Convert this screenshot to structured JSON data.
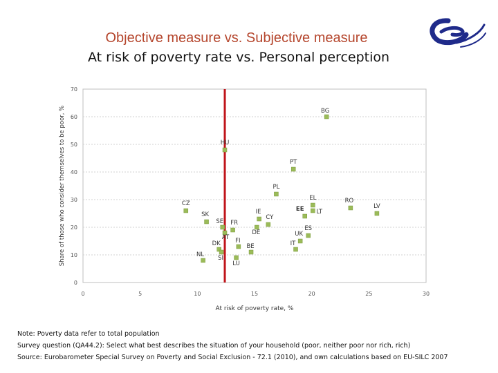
{
  "header": {
    "title": "Objective measure vs. Subjective measure",
    "subtitle": "At risk of poverty rate vs. Personal perception"
  },
  "logo": {
    "icon": "eu-commission-logo-icon",
    "color": "#1f2a8a"
  },
  "notes": [
    "Note: Poverty data refer to total population",
    "Survey question (QA44.2): Select what best describes the situation of your household (poor, neither poor nor rich, rich)",
    "Source: Eurobarometer Special Survey on Poverty and Social Exclusion - 72.1 (2010),  and own calculations based on EU-SILC 2007"
  ],
  "chart_data": {
    "type": "scatter",
    "xlabel": "At risk of poverty rate, %",
    "ylabel": "Share of those who consider themselves to be poor, %",
    "xlim": [
      0,
      30
    ],
    "ylim": [
      0,
      70
    ],
    "xticks": [
      0,
      5,
      10,
      15,
      20,
      25,
      30
    ],
    "yticks": [
      0,
      10,
      20,
      30,
      40,
      50,
      60,
      70
    ],
    "grid": "horizontal dotted",
    "reference_line": {
      "axis": "x",
      "value": 12.4,
      "color": "#c0141a"
    },
    "marker_color": "#9bbb59",
    "points": [
      {
        "label": "BG",
        "x": 21.3,
        "y": 60
      },
      {
        "label": "HU",
        "x": 12.4,
        "y": 48
      },
      {
        "label": "PT",
        "x": 18.4,
        "y": 41
      },
      {
        "label": "PL",
        "x": 16.9,
        "y": 32
      },
      {
        "label": "EL",
        "x": 20.1,
        "y": 28
      },
      {
        "label": "RO",
        "x": 23.4,
        "y": 27
      },
      {
        "label": "LV",
        "x": 25.7,
        "y": 25
      },
      {
        "label": "EE",
        "x": 19.4,
        "y": 24
      },
      {
        "label": "LT",
        "x": 20.1,
        "y": 26
      },
      {
        "label": "CZ",
        "x": 9.0,
        "y": 26
      },
      {
        "label": "SK",
        "x": 10.8,
        "y": 22
      },
      {
        "label": "SE",
        "x": 12.2,
        "y": 20
      },
      {
        "label": "FR",
        "x": 13.1,
        "y": 19
      },
      {
        "label": "IE",
        "x": 15.4,
        "y": 23
      },
      {
        "label": "CY",
        "x": 16.2,
        "y": 21
      },
      {
        "label": "DE",
        "x": 15.2,
        "y": 20
      },
      {
        "label": "ES",
        "x": 19.7,
        "y": 17
      },
      {
        "label": "UK",
        "x": 19.0,
        "y": 15
      },
      {
        "label": "IT",
        "x": 18.6,
        "y": 12
      },
      {
        "label": "AT",
        "x": 12.4,
        "y": 18
      },
      {
        "label": "DK",
        "x": 11.9,
        "y": 12
      },
      {
        "label": "FI",
        "x": 13.6,
        "y": 13
      },
      {
        "label": "BE",
        "x": 14.7,
        "y": 11
      },
      {
        "label": "NL",
        "x": 10.5,
        "y": 8
      },
      {
        "label": "SI",
        "x": 12.1,
        "y": 11
      },
      {
        "label": "LU",
        "x": 13.4,
        "y": 9
      }
    ]
  }
}
